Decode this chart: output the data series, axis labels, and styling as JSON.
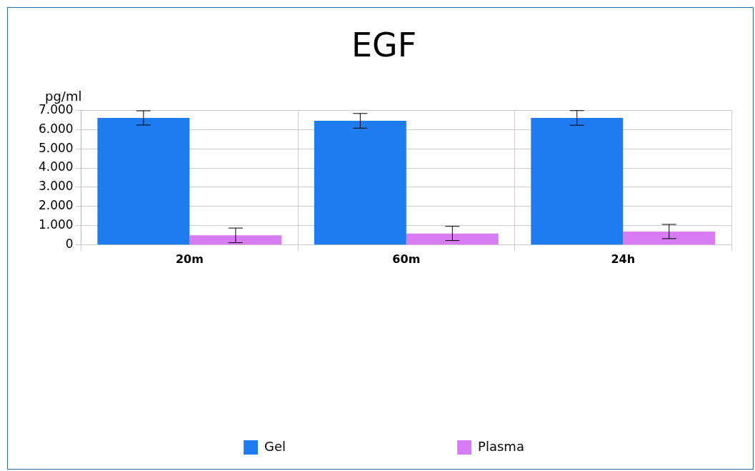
{
  "chart_data": {
    "type": "bar",
    "title": "EGF",
    "ylabel": "pg/ml",
    "categories": [
      "20m",
      "60m",
      "24h"
    ],
    "series": [
      {
        "name": "Gel",
        "color": "#1e7cf0",
        "values": [
          6600,
          6450,
          6600
        ],
        "errors": [
          370,
          380,
          380
        ]
      },
      {
        "name": "Plasma",
        "color": "#d77cf2",
        "values": [
          500,
          600,
          700
        ],
        "errors": [
          380,
          370,
          370
        ]
      }
    ],
    "ylim": [
      0,
      7000
    ],
    "yticks": [
      {
        "value": 0,
        "label": "0"
      },
      {
        "value": 1000,
        "label": "1.000"
      },
      {
        "value": 2000,
        "label": "2.000"
      },
      {
        "value": 3000,
        "label": "3.000"
      },
      {
        "value": 4000,
        "label": "4.000"
      },
      {
        "value": 5000,
        "label": "5.000"
      },
      {
        "value": 6000,
        "label": "6.000"
      },
      {
        "value": 7000,
        "label": "7.000"
      }
    ],
    "grid": true,
    "legend": "bottom"
  }
}
